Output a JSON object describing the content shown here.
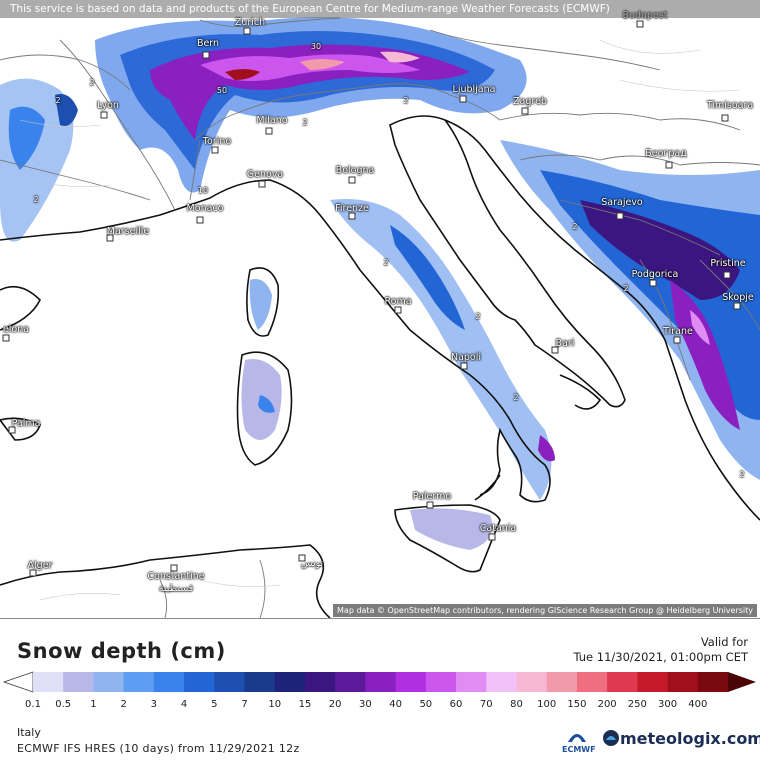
{
  "notice": "This service is based on data and products of the European Centre for Medium-range Weather Forecasts (ECMWF)",
  "attribution": "Map data © OpenStreetMap contributors, rendering GIScience Research Group @ Heidelberg University",
  "cities": [
    {
      "name": "Zurich"
    },
    {
      "name": "Budapest"
    },
    {
      "name": "Bern"
    },
    {
      "name": "Lyon"
    },
    {
      "name": "Ljubljana"
    },
    {
      "name": "Zagreb"
    },
    {
      "name": "Timisoara"
    },
    {
      "name": "Milano"
    },
    {
      "name": "Torino"
    },
    {
      "name": "Београд"
    },
    {
      "name": "Genova"
    },
    {
      "name": "Bologna"
    },
    {
      "name": "Monaco"
    },
    {
      "name": "Sarajevo"
    },
    {
      "name": "Firenze"
    },
    {
      "name": "Marseille"
    },
    {
      "name": "Pristine"
    },
    {
      "name": "Podgorica"
    },
    {
      "name": "Skopje"
    },
    {
      "name": "Roma"
    },
    {
      "name": "elona"
    },
    {
      "name": "Tirane"
    },
    {
      "name": "Bari"
    },
    {
      "name": "Napoli"
    },
    {
      "name": "Palma"
    },
    {
      "name": "Palermo"
    },
    {
      "name": "Catania"
    },
    {
      "name": "Alger"
    },
    {
      "name": "Constantine"
    },
    {
      "name": "قسنطينة"
    },
    {
      "name": "تونس"
    }
  ],
  "contour_labels": [
    "2",
    "2",
    "2",
    "30",
    "50",
    "10",
    "2",
    "2",
    "2",
    "2",
    "2",
    "2",
    "2",
    "2"
  ],
  "legend": {
    "title": "Snow depth (cm)",
    "valid_label": "Valid for",
    "valid_time": "Tue 11/30/2021, 01:00pm CET",
    "ticks": [
      "0.1",
      "0.5",
      "1",
      "2",
      "3",
      "4",
      "5",
      "7",
      "10",
      "15",
      "20",
      "30",
      "40",
      "50",
      "60",
      "70",
      "80",
      "100",
      "150",
      "200",
      "250",
      "300",
      "400"
    ],
    "colors": [
      "#e0e0f8",
      "#b8b8e8",
      "#8fb4f0",
      "#5e9ef2",
      "#3a82ec",
      "#2266d6",
      "#1d4fb0",
      "#1a3a8c",
      "#1e2278",
      "#3c1680",
      "#5a1a9a",
      "#8a20c0",
      "#b02ee0",
      "#cc55ee",
      "#e08cf4",
      "#f0c0f6",
      "#f6b8d4",
      "#f29aac",
      "#ef6e80",
      "#e03850",
      "#c41a2a",
      "#a0101c",
      "#7a0a10",
      "#4a0606"
    ]
  },
  "region": "Italy",
  "model": "ECMWF IFS HRES (10 days) from 11/29/2021 12z",
  "brand": "meteologix.com",
  "ecmwf_label": "ECMWF"
}
